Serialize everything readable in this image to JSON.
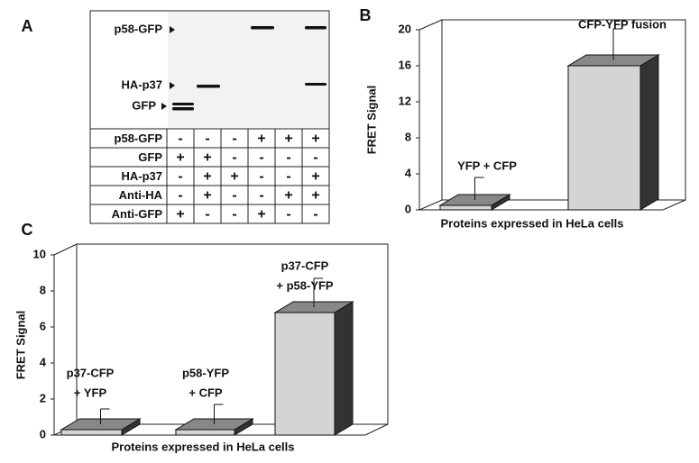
{
  "blot": {
    "panel": "A",
    "markers": [
      "p58-GFP",
      "HA-p37",
      "GFP"
    ],
    "rows": [
      {
        "label": "p58-GFP",
        "cells": [
          "-",
          "-",
          "-",
          "+",
          "+",
          "+"
        ]
      },
      {
        "label": "GFP",
        "cells": [
          "+",
          "+",
          "-",
          "-",
          "-",
          "-"
        ]
      },
      {
        "label": "HA-p37",
        "cells": [
          "-",
          "+",
          "+",
          "-",
          "-",
          "+"
        ]
      },
      {
        "label": "Anti-HA",
        "cells": [
          "-",
          "+",
          "-",
          "-",
          "+",
          "+"
        ]
      },
      {
        "label": "Anti-GFP",
        "cells": [
          "+",
          "-",
          "-",
          "+",
          "-",
          "-"
        ]
      }
    ]
  },
  "chart_data": [
    {
      "type": "bar3d",
      "panel": "B",
      "y_label": "FRET Signal",
      "x_label": "Proteins expressed in HeLa cells",
      "bar_labels": [
        [
          "YFP + CFP"
        ],
        [
          "CFP-YFP fusion"
        ]
      ],
      "values": [
        0.5,
        16
      ],
      "errors": [
        2.5,
        3.5
      ],
      "ylim": [
        0,
        20
      ],
      "yticks": [
        0,
        4,
        8,
        12,
        16,
        20
      ]
    },
    {
      "type": "bar3d",
      "panel": "C",
      "y_label": "FRET Signal",
      "x_label": "Proteins expressed in HeLa cells",
      "bar_labels": [
        [
          "p37-CFP",
          "+ YFP"
        ],
        [
          "p58-YFP",
          "+ CFP"
        ],
        [
          "p37-CFP",
          "+ p58-YFP"
        ]
      ],
      "values": [
        0.3,
        0.3,
        6.8
      ],
      "errors": [
        0.85,
        1.1,
        1.6
      ],
      "ylim": [
        0,
        10
      ],
      "yticks": [
        0,
        2,
        4,
        6,
        8,
        10
      ]
    }
  ]
}
